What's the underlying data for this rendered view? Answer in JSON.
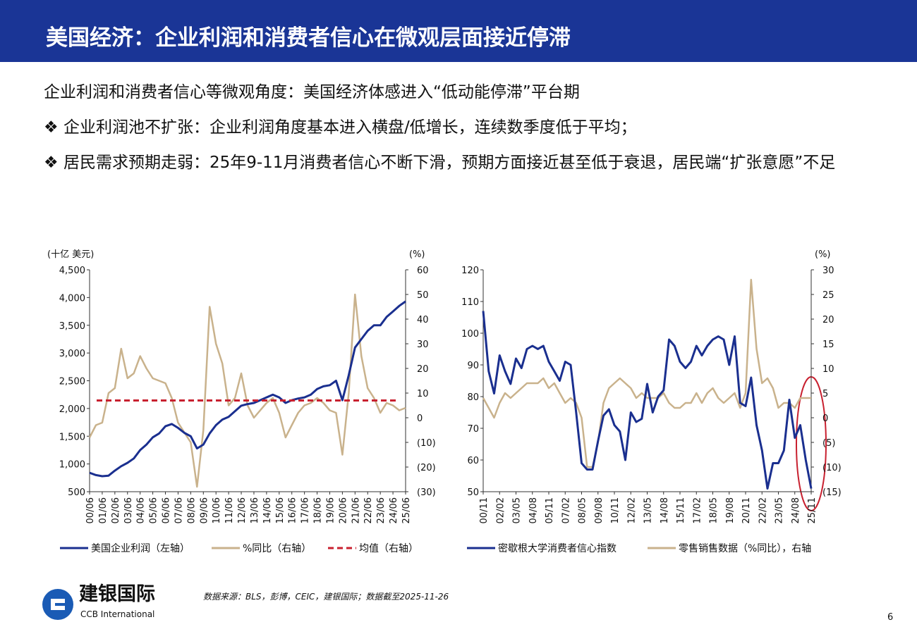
{
  "header": {
    "title": "美国经济：企业利润和消费者信心在微观层面接近停滞"
  },
  "intro": "企业利润和消费者信心等微观角度：美国经济体感进入“低动能停滞”平台期",
  "bullets": [
    "企业利润池不扩张：企业利润角度基本进入横盘/低增长，连续数季度低于平均；",
    "居民需求预期走弱：25年9-11月消费者信心不断下滑，预期方面接近甚至低于衰退，居民端“扩张意愿”不足"
  ],
  "chart_data": [
    {
      "type": "line",
      "y_unit": "(十亿 美元)",
      "y2_unit": "(%)",
      "categories": [
        "00/06",
        null,
        "01/06",
        null,
        "02/06",
        null,
        "03/06",
        null,
        "04/06",
        null,
        "05/06",
        null,
        "06/06",
        null,
        "07/06",
        null,
        "08/06",
        null,
        "09/06",
        null,
        "10/06",
        null,
        "11/06",
        null,
        "12/06",
        null,
        "13/06",
        null,
        "14/06",
        null,
        "15/06",
        null,
        "16/06",
        null,
        "17/06",
        null,
        "18/06",
        null,
        "19/06",
        null,
        "20/06",
        null,
        "21/06",
        null,
        "22/06",
        null,
        "23/06",
        null,
        "24/06",
        null,
        "25/06"
      ],
      "series": [
        {
          "name": "美国企业利润（左轴）",
          "color": "#1a2f8f",
          "values": [
            840,
            800,
            780,
            790,
            880,
            960,
            1020,
            1100,
            1250,
            1350,
            1480,
            1550,
            1680,
            1720,
            1650,
            1560,
            1500,
            1280,
            1350,
            1550,
            1700,
            1800,
            1850,
            1950,
            2050,
            2080,
            2100,
            2150,
            2200,
            2250,
            2200,
            2100,
            2150,
            2180,
            2200,
            2250,
            2350,
            2400,
            2420,
            2500,
            2150,
            2600,
            3100,
            3250,
            3400,
            3500,
            3500,
            3650,
            3750,
            3850,
            3930
          ]
        },
        {
          "name": "%同比（右轴）",
          "color": "#c9b28c",
          "axis": "y2",
          "values": [
            -8,
            -3,
            -2,
            10,
            12,
            28,
            16,
            18,
            25,
            20,
            16,
            15,
            14,
            8,
            -2,
            -6,
            -10,
            -28,
            -5,
            45,
            30,
            22,
            5,
            8,
            18,
            5,
            0,
            3,
            6,
            8,
            2,
            -8,
            -3,
            2,
            5,
            6,
            8,
            6,
            3,
            2,
            -15,
            10,
            50,
            25,
            12,
            8,
            2,
            6,
            5,
            3,
            4
          ]
        }
      ],
      "reference_line": {
        "name": "均值（右轴）",
        "value": 7,
        "color": "#c8202f",
        "axis": "y2"
      },
      "ylim": [
        500,
        4500
      ],
      "yticks": [
        500,
        {
          "value": 1000,
          "label": "1,000"
        },
        {
          "value": 1500,
          "label": "1,500"
        },
        {
          "value": 2000,
          "label": "2,000"
        },
        {
          "value": 2500,
          "label": "2,500"
        },
        {
          "value": 3000,
          "label": "3,000"
        },
        {
          "value": 3500,
          "label": "3,500"
        },
        {
          "value": 4000,
          "label": "4,000"
        },
        {
          "value": 4500,
          "label": "4,500"
        }
      ],
      "y2lim": [
        -30,
        60
      ],
      "y2ticks": [
        {
          "value": -30,
          "label": "(30)"
        },
        {
          "value": -20,
          "label": "(20)"
        },
        {
          "value": -10,
          "label": "(10)"
        },
        0,
        10,
        20,
        30,
        40,
        50,
        60
      ],
      "negative_tick_color": "#c00000"
    },
    {
      "type": "line",
      "y2_unit": "(%)",
      "categories": [
        "00/11",
        null,
        null,
        "02/02",
        null,
        null,
        "03/05",
        null,
        null,
        "04/08",
        null,
        null,
        "05/11",
        null,
        null,
        "07/02",
        null,
        null,
        "08/05",
        null,
        null,
        "09/08",
        null,
        null,
        "10/11",
        null,
        null,
        "12/02",
        null,
        null,
        "13/05",
        null,
        null,
        "14/08",
        null,
        null,
        "15/11",
        null,
        null,
        "17/02",
        null,
        null,
        "18/05",
        null,
        null,
        "19/08",
        null,
        null,
        "20/11",
        null,
        null,
        "22/02",
        null,
        null,
        "23/05",
        null,
        null,
        "24/08",
        null,
        null,
        "25/11"
      ],
      "series": [
        {
          "name": "密歇根大学消费者信心指数",
          "color": "#1a2f8f",
          "values": [
            107,
            88,
            81,
            93,
            88,
            84,
            92,
            89,
            95,
            96,
            95,
            96,
            91,
            88,
            85,
            91,
            90,
            75,
            59,
            57,
            57,
            66,
            74,
            76,
            71,
            69,
            60,
            75,
            72,
            73,
            84,
            75,
            80,
            82,
            98,
            96,
            91,
            89,
            91,
            96,
            93,
            96,
            98,
            99,
            98,
            90,
            99,
            78,
            77,
            86,
            71,
            63,
            51,
            59,
            59,
            63,
            79,
            67,
            71,
            60,
            51
          ]
        },
        {
          "name": "零售销售数据（%同比），右轴",
          "color": "#c9b28c",
          "axis": "y2",
          "values": [
            4,
            2,
            0,
            3,
            5,
            4,
            5,
            6,
            7,
            7,
            7,
            8,
            6,
            7,
            5,
            3,
            4,
            3,
            0,
            -10,
            -10,
            -5,
            3,
            6,
            7,
            8,
            7,
            6,
            4,
            5,
            4,
            4,
            4,
            5,
            3,
            2,
            2,
            3,
            3,
            5,
            3,
            5,
            6,
            4,
            3,
            4,
            5,
            2,
            5,
            28,
            14,
            7,
            8,
            6,
            2,
            3,
            3,
            2,
            4,
            4,
            4
          ]
        }
      ],
      "ylim": [
        50,
        120
      ],
      "yticks": [
        50,
        60,
        70,
        80,
        90,
        100,
        110,
        120
      ],
      "y2lim": [
        -15,
        30
      ],
      "y2ticks": [
        {
          "value": -15,
          "label": "(15)"
        },
        {
          "value": -10,
          "label": "(10)"
        },
        {
          "value": -5,
          "label": "(5)"
        },
        0,
        5,
        10,
        15,
        20,
        25,
        30
      ],
      "negative_tick_color": "#c00000"
    }
  ],
  "footer": {
    "logo": "建银国际",
    "logo_en": "CCB International",
    "source": "数据来源：BLS，彭博，CEIC，建银国际；数据截至2025-11-26",
    "page": "6"
  }
}
